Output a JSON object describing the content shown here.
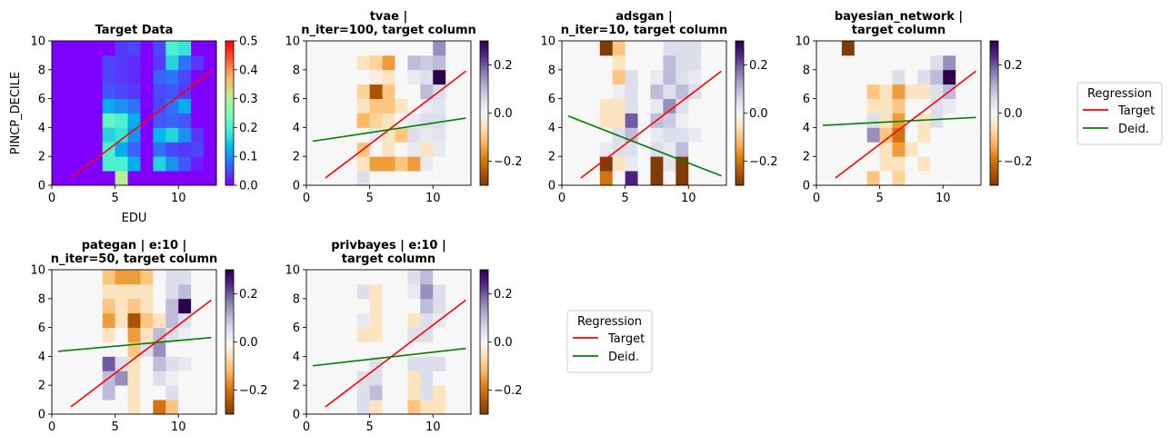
{
  "figure": {
    "layout": "2x4",
    "legend_color_red": "#ff0000",
    "legend_color_green": "#008000"
  },
  "legends": [
    {
      "title": "Regression",
      "entries": [
        {
          "label": "Target",
          "color": "#ff0000"
        },
        {
          "label": "Deid.",
          "color": "#008000"
        }
      ]
    },
    {
      "title": "Regression",
      "entries": [
        {
          "label": "Target",
          "color": "#ff0000"
        },
        {
          "label": "Deid.",
          "color": "#008000"
        }
      ]
    }
  ],
  "chart_data": [
    {
      "type": "heatmap",
      "title": "Target Data",
      "xlabel": "EDU",
      "ylabel": "PINCP_DECILE",
      "xlim": [
        0,
        13
      ],
      "ylim": [
        0,
        10
      ],
      "x_ticks": [
        "0",
        "5",
        "10"
      ],
      "y_ticks": [
        "0",
        "2",
        "4",
        "6",
        "8",
        "10"
      ],
      "colormap": "rainbow",
      "colorbar": {
        "range": [
          0,
          0.5
        ],
        "ticks": [
          "0.0",
          "0.1",
          "0.2",
          "0.3",
          "0.4",
          "0.5"
        ]
      },
      "grid": [
        [
          0,
          0,
          0,
          0,
          0,
          0.3,
          0,
          0,
          0,
          0,
          0,
          0,
          0
        ],
        [
          0,
          0,
          0,
          0,
          0.2,
          0.2,
          0.12,
          0,
          0.16,
          0.1,
          0.06,
          0.02,
          0
        ],
        [
          0,
          0,
          0,
          0,
          0.2,
          0.12,
          0.07,
          0,
          0.08,
          0.05,
          0.04,
          0.05,
          0
        ],
        [
          0,
          0,
          0,
          0,
          0.16,
          0.18,
          0.1,
          0,
          0.13,
          0.16,
          0.1,
          0.04,
          0
        ],
        [
          0,
          0,
          0,
          0,
          0.22,
          0.2,
          0.12,
          0,
          0.06,
          0.07,
          0.06,
          0,
          0
        ],
        [
          0,
          0,
          0,
          0,
          0.12,
          0.1,
          0.08,
          0,
          0.05,
          0.08,
          0.12,
          0,
          0
        ],
        [
          0,
          0,
          0,
          0,
          0.06,
          0.05,
          0.04,
          0,
          0.05,
          0.06,
          0.04,
          0,
          0
        ],
        [
          0,
          0,
          0,
          0,
          0.05,
          0.04,
          0.03,
          0,
          0.07,
          0.08,
          0.05,
          0,
          0
        ],
        [
          0,
          0,
          0,
          0,
          0.05,
          0.04,
          0.03,
          0,
          0.04,
          0.16,
          0.08,
          0.04,
          0
        ],
        [
          0,
          0,
          0,
          0,
          0,
          0.04,
          0.05,
          0,
          0.05,
          0.2,
          0.18,
          0,
          0
        ]
      ],
      "lines": [
        {
          "label": "Target",
          "color": "#ff0000",
          "x": [
            1.5,
            12.6
          ],
          "y": [
            0.5,
            7.9
          ]
        }
      ]
    },
    {
      "type": "heatmap",
      "title_lines": [
        "tvae |",
        "n_iter=100, target column"
      ],
      "xlim": [
        0,
        13
      ],
      "ylim": [
        0,
        10
      ],
      "x_ticks": [
        "0",
        "5",
        "10"
      ],
      "y_ticks": [
        "0",
        "2",
        "4",
        "6",
        "8",
        "10"
      ],
      "colormap": "PuOr",
      "colorbar": {
        "range": [
          -0.3,
          0.3
        ],
        "ticks": [
          "−0.2",
          "0.0",
          "0.2"
        ]
      },
      "grid": [
        [
          0,
          0,
          0,
          0,
          0.05,
          0,
          0,
          0,
          0,
          0,
          0,
          0,
          0
        ],
        [
          0,
          0,
          0,
          0,
          -0.05,
          -0.15,
          -0.15,
          -0.1,
          -0.15,
          0.03,
          0,
          0,
          0
        ],
        [
          0,
          0,
          0,
          0,
          -0.1,
          0,
          -0.05,
          0,
          0.03,
          -0.05,
          0.03,
          0,
          0
        ],
        [
          0,
          0,
          0,
          0,
          0,
          0.03,
          -0.05,
          -0.1,
          0.05,
          0.03,
          0.04,
          0,
          0
        ],
        [
          0,
          0,
          0,
          0,
          -0.12,
          -0.08,
          -0.05,
          0,
          0.03,
          0.05,
          0.05,
          0,
          0
        ],
        [
          0,
          0,
          0,
          0,
          -0.05,
          -0.1,
          -0.1,
          -0.05,
          0,
          0.03,
          0.04,
          0,
          0
        ],
        [
          0,
          0,
          0,
          0,
          -0.08,
          -0.25,
          -0.1,
          0,
          0,
          0.1,
          0.05,
          0,
          0
        ],
        [
          0,
          0,
          0,
          0,
          0,
          -0.02,
          -0.05,
          0,
          0.03,
          0.05,
          0.3,
          0,
          0
        ],
        [
          0,
          0,
          0,
          0,
          -0.05,
          -0.08,
          -0.15,
          0,
          0.1,
          0.08,
          0.1,
          0,
          0
        ],
        [
          0,
          0,
          0,
          0,
          0,
          0,
          0,
          0,
          0,
          0,
          0.15,
          0,
          0
        ]
      ],
      "lines": [
        {
          "label": "Target",
          "color": "#ff0000",
          "x": [
            1.5,
            12.6
          ],
          "y": [
            0.5,
            7.9
          ]
        },
        {
          "label": "Deid.",
          "color": "#008000",
          "x": [
            0.5,
            12.6
          ],
          "y": [
            3.05,
            4.65
          ]
        }
      ]
    },
    {
      "type": "heatmap",
      "title_lines": [
        "adsgan |",
        "n_iter=10, target column"
      ],
      "xlim": [
        0,
        13
      ],
      "ylim": [
        0,
        10
      ],
      "x_ticks": [
        "0",
        "5",
        "10"
      ],
      "y_ticks": [
        "0",
        "2",
        "4",
        "6",
        "8",
        "10"
      ],
      "colormap": "PuOr",
      "colorbar": {
        "range": [
          -0.3,
          0.3
        ],
        "ticks": [
          "−0.2",
          "0.0",
          "0.2"
        ]
      },
      "grid": [
        [
          0,
          0,
          0,
          -0.2,
          0,
          0.25,
          0,
          -0.3,
          0,
          -0.3,
          0,
          0,
          0
        ],
        [
          0,
          0,
          0,
          -0.3,
          -0.05,
          0.03,
          0,
          -0.3,
          0.04,
          -0.3,
          0,
          0,
          0
        ],
        [
          0,
          0,
          0,
          0.03,
          0.05,
          0.05,
          0,
          0.05,
          0.03,
          0.1,
          0,
          0,
          0
        ],
        [
          0,
          0,
          0,
          0,
          0.05,
          0.1,
          0,
          0.03,
          0.05,
          0.05,
          0.03,
          0,
          0
        ],
        [
          0,
          0,
          0,
          -0.05,
          -0.05,
          0.2,
          0,
          0.1,
          0.08,
          0.02,
          0,
          0,
          0
        ],
        [
          0,
          0,
          0,
          -0.05,
          -0.05,
          0.05,
          0,
          0.03,
          0.15,
          0.05,
          0,
          0,
          0
        ],
        [
          0,
          0,
          0,
          0,
          0.02,
          0.05,
          0,
          0.1,
          0.05,
          0.1,
          0.05,
          0,
          0
        ],
        [
          0,
          0,
          0,
          0,
          -0.1,
          0.05,
          0,
          0.03,
          0.1,
          0.05,
          0.03,
          0,
          0
        ],
        [
          0,
          0,
          0,
          0,
          -0.05,
          0,
          0,
          0,
          0.1,
          0.05,
          0.05,
          0,
          0
        ],
        [
          0,
          0,
          0,
          -0.3,
          -0.1,
          0,
          0,
          0,
          0.05,
          0.05,
          0.05,
          0,
          0
        ]
      ],
      "lines": [
        {
          "label": "Target",
          "color": "#ff0000",
          "x": [
            1.5,
            12.6
          ],
          "y": [
            0.5,
            7.9
          ]
        },
        {
          "label": "Deid.",
          "color": "#008000",
          "x": [
            0.5,
            12.6
          ],
          "y": [
            4.8,
            0.65
          ]
        }
      ]
    },
    {
      "type": "heatmap",
      "title_lines": [
        "bayesian_network |",
        "target column"
      ],
      "xlim": [
        0,
        13
      ],
      "ylim": [
        0,
        10
      ],
      "x_ticks": [
        "0",
        "5",
        "10"
      ],
      "y_ticks": [
        "0",
        "2",
        "4",
        "6",
        "8",
        "10"
      ],
      "colormap": "PuOr",
      "colorbar": {
        "range": [
          -0.3,
          0.3
        ],
        "ticks": [
          "−0.2",
          "0.0",
          "0.2"
        ]
      },
      "grid": [
        [
          0,
          0,
          0,
          0,
          -0.1,
          0,
          -0.08,
          0,
          0,
          0,
          0,
          0,
          0
        ],
        [
          0,
          0,
          0,
          0,
          0,
          -0.05,
          -0.05,
          0,
          -0.05,
          0,
          0,
          0,
          0
        ],
        [
          0,
          0,
          0,
          0,
          0,
          -0.05,
          -0.15,
          -0.05,
          0,
          0,
          0,
          0,
          0
        ],
        [
          0,
          0,
          0,
          0,
          0.15,
          -0.1,
          -0.2,
          0,
          -0.05,
          0,
          0,
          0,
          0
        ],
        [
          0,
          0,
          0,
          0,
          0.05,
          -0.05,
          -0.15,
          0,
          -0.05,
          0.05,
          0,
          0,
          0
        ],
        [
          0,
          0,
          0,
          0,
          -0.05,
          -0.05,
          -0.1,
          0,
          0,
          0.05,
          0.03,
          0,
          0
        ],
        [
          0,
          0,
          0,
          0,
          -0.1,
          -0.05,
          -0.15,
          -0.05,
          -0.05,
          0.05,
          0.1,
          0,
          0
        ],
        [
          0,
          0,
          0,
          0,
          0,
          0,
          0.05,
          0,
          0.05,
          0.1,
          0.3,
          0,
          0
        ],
        [
          0,
          0,
          0,
          0,
          0,
          0,
          0,
          0,
          0,
          0.05,
          0.15,
          0,
          0
        ],
        [
          0,
          0,
          -0.3,
          0,
          0,
          0,
          0,
          0,
          0,
          0,
          0,
          0,
          0
        ]
      ],
      "lines": [
        {
          "label": "Target",
          "color": "#ff0000",
          "x": [
            1.5,
            12.6
          ],
          "y": [
            0.5,
            7.9
          ]
        },
        {
          "label": "Deid.",
          "color": "#008000",
          "x": [
            0.5,
            12.6
          ],
          "y": [
            4.15,
            4.7
          ]
        }
      ]
    },
    {
      "type": "heatmap",
      "title_lines": [
        "pategan | e:10 |",
        "n_iter=50, target column"
      ],
      "xlim": [
        0,
        13
      ],
      "ylim": [
        0,
        10
      ],
      "x_ticks": [
        "0",
        "5",
        "10"
      ],
      "y_ticks": [
        "0",
        "2",
        "4",
        "6",
        "8",
        "10"
      ],
      "colormap": "PuOr",
      "colorbar": {
        "range": [
          -0.3,
          0.3
        ],
        "ticks": [
          "−0.2",
          "0.0",
          "0.2"
        ]
      },
      "grid": [
        [
          0,
          0,
          0,
          0,
          0,
          0,
          -0.05,
          0,
          -0.2,
          -0.1,
          0,
          0,
          0
        ],
        [
          0,
          0,
          0,
          0,
          0.1,
          0,
          -0.05,
          0,
          0,
          0.05,
          0,
          0,
          0
        ],
        [
          0,
          0,
          0,
          0,
          0.1,
          0.15,
          -0.05,
          0,
          0.05,
          0.02,
          0,
          0,
          0
        ],
        [
          0,
          0,
          0,
          0,
          0.2,
          0.05,
          -0.05,
          0,
          0.1,
          0.05,
          0.03,
          0,
          0
        ],
        [
          0,
          0,
          0,
          0,
          0,
          0,
          -0.1,
          0.05,
          0.15,
          0,
          0,
          0,
          0
        ],
        [
          0,
          0,
          0,
          0,
          -0.05,
          0,
          -0.15,
          -0.05,
          0.1,
          0.05,
          0.02,
          0,
          0
        ],
        [
          0,
          0,
          0,
          0,
          -0.15,
          -0.05,
          -0.25,
          -0.1,
          -0.05,
          0.1,
          0.05,
          0,
          0
        ],
        [
          0,
          0,
          0,
          0,
          -0.1,
          -0.05,
          -0.1,
          -0.05,
          0,
          0.1,
          0.3,
          0,
          0
        ],
        [
          0,
          0,
          0,
          0,
          -0.05,
          -0.05,
          -0.05,
          -0.05,
          0,
          0.05,
          0.1,
          0,
          0
        ],
        [
          0,
          0,
          0,
          0,
          -0.1,
          -0.15,
          -0.15,
          -0.1,
          0,
          0.05,
          0.05,
          0,
          0
        ]
      ],
      "lines": [
        {
          "label": "Target",
          "color": "#ff0000",
          "x": [
            1.5,
            12.6
          ],
          "y": [
            0.5,
            7.9
          ]
        },
        {
          "label": "Deid.",
          "color": "#008000",
          "x": [
            0.5,
            12.6
          ],
          "y": [
            4.35,
            5.3
          ]
        }
      ]
    },
    {
      "type": "heatmap",
      "title_lines": [
        "privbayes | e:10 |",
        "target column"
      ],
      "xlim": [
        0,
        13
      ],
      "ylim": [
        0,
        10
      ],
      "x_ticks": [
        "0",
        "5",
        "10"
      ],
      "y_ticks": [
        "0",
        "2",
        "4",
        "6",
        "8",
        "10"
      ],
      "colormap": "PuOr",
      "colorbar": {
        "range": [
          -0.3,
          0.3
        ],
        "ticks": [
          "−0.2",
          "0.0",
          "0.2"
        ]
      },
      "grid": [
        [
          0,
          0,
          0,
          0,
          0.05,
          -0.05,
          0,
          0,
          -0.1,
          -0.05,
          -0.05,
          0,
          0
        ],
        [
          0,
          0,
          0,
          0,
          0.05,
          0.1,
          0,
          0,
          -0.05,
          0.05,
          -0.05,
          0,
          0
        ],
        [
          0,
          0,
          0,
          0,
          0.05,
          0.05,
          0,
          0,
          -0.05,
          0.05,
          0,
          0,
          0
        ],
        [
          0,
          0,
          0,
          0,
          0,
          0.05,
          0,
          0,
          0.05,
          0.05,
          0.05,
          0,
          0
        ],
        [
          0,
          0,
          0,
          0,
          0,
          0,
          0,
          0,
          0,
          0,
          0,
          0,
          0
        ],
        [
          0,
          0,
          0,
          0,
          -0.05,
          -0.05,
          0,
          0,
          0.05,
          0.05,
          0,
          0,
          0
        ],
        [
          0,
          0,
          0,
          0,
          0.03,
          -0.05,
          0,
          0,
          -0.05,
          0.05,
          0.03,
          0,
          0
        ],
        [
          0,
          0,
          0,
          0,
          0,
          -0.05,
          0,
          0,
          0,
          0.1,
          0.05,
          0,
          0
        ],
        [
          0,
          0,
          0,
          0,
          0.05,
          -0.05,
          0,
          0,
          0.03,
          0.15,
          0.05,
          0,
          0
        ],
        [
          0,
          0,
          0,
          0,
          0,
          0,
          0,
          0,
          0.05,
          0.1,
          0,
          0,
          0
        ]
      ],
      "lines": [
        {
          "label": "Target",
          "color": "#ff0000",
          "x": [
            1.5,
            12.6
          ],
          "y": [
            0.5,
            7.9
          ]
        },
        {
          "label": "Deid.",
          "color": "#008000",
          "x": [
            0.5,
            12.6
          ],
          "y": [
            3.35,
            4.55
          ]
        }
      ]
    }
  ]
}
